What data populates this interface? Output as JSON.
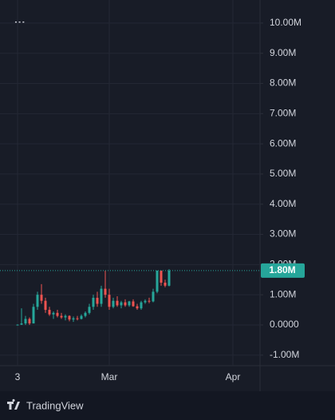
{
  "chart_data": {
    "type": "candlestick",
    "categories": [
      "3",
      null,
      null,
      null,
      null,
      null,
      null,
      null,
      null,
      null,
      null,
      null,
      null,
      null,
      null,
      null,
      null,
      null,
      null,
      null,
      null,
      null,
      null,
      "Mar",
      null,
      null,
      null,
      null,
      null,
      null,
      null,
      null,
      null,
      null,
      null,
      null,
      null,
      null,
      null,
      null,
      null,
      null,
      null,
      null,
      null,
      null,
      null,
      null,
      null,
      null,
      null,
      null,
      null,
      null,
      "Apr",
      null,
      null,
      null,
      null,
      null,
      null,
      null
    ],
    "open": [
      0,
      10000,
      50000,
      200000,
      50000,
      600000,
      1000000,
      800000,
      500000,
      350000,
      400000,
      300000,
      250000,
      300000,
      180000,
      220000,
      200000,
      300000,
      400000,
      600000,
      900000,
      700000,
      1200000,
      1000000,
      600000,
      800000,
      650000,
      750000,
      650000,
      780000,
      620000,
      550000,
      750000,
      800000,
      780000,
      1100000,
      1800000,
      1400000,
      1300000,
      null,
      null,
      null,
      null,
      null,
      null,
      null,
      null,
      null,
      null,
      null,
      null,
      null,
      null,
      null,
      null,
      null,
      null,
      null,
      null,
      null,
      null,
      null
    ],
    "high": [
      20000,
      550000,
      300000,
      250000,
      700000,
      1100000,
      1350000,
      900000,
      600000,
      450000,
      500000,
      400000,
      350000,
      320000,
      280000,
      300000,
      350000,
      450000,
      700000,
      1000000,
      1100000,
      1300000,
      1800000,
      1200000,
      900000,
      950000,
      800000,
      850000,
      800000,
      850000,
      700000,
      800000,
      850000,
      900000,
      1200000,
      1800000,
      1800000,
      1500000,
      1850000,
      null,
      null,
      null,
      null,
      null,
      null,
      null,
      null,
      null,
      null,
      null,
      null,
      null,
      null,
      null,
      null,
      null,
      null,
      null,
      null,
      null,
      null,
      null
    ],
    "low": [
      0,
      0,
      0,
      0,
      50000,
      500000,
      700000,
      400000,
      300000,
      200000,
      250000,
      200000,
      150000,
      120000,
      100000,
      150000,
      180000,
      250000,
      350000,
      500000,
      600000,
      600000,
      900000,
      500000,
      550000,
      600000,
      550000,
      600000,
      600000,
      600000,
      500000,
      500000,
      700000,
      720000,
      750000,
      1050000,
      1300000,
      1250000,
      1280000,
      null,
      null,
      null,
      null,
      null,
      null,
      null,
      null,
      null,
      null,
      null,
      null,
      null,
      null,
      null,
      null,
      null,
      null,
      null,
      null,
      null,
      null,
      null
    ],
    "close": [
      10000,
      50000,
      200000,
      50000,
      600000,
      1000000,
      800000,
      500000,
      350000,
      400000,
      300000,
      250000,
      300000,
      180000,
      220000,
      200000,
      300000,
      400000,
      600000,
      900000,
      700000,
      1200000,
      1000000,
      600000,
      800000,
      650000,
      750000,
      650000,
      780000,
      620000,
      550000,
      750000,
      800000,
      780000,
      1100000,
      1800000,
      1400000,
      1300000,
      1800000,
      null,
      null,
      null,
      null,
      null,
      null,
      null,
      null,
      null,
      null,
      null,
      null,
      null,
      null,
      null,
      null,
      null,
      null,
      null,
      null,
      null,
      null,
      null
    ],
    "up_color": "#26a69a",
    "down_color": "#ef5350",
    "ylim": [
      -1350000,
      10500000
    ],
    "yticks": [
      {
        "value": 10000000,
        "label": "10.00M"
      },
      {
        "value": 9000000,
        "label": "9.00M"
      },
      {
        "value": 8000000,
        "label": "8.00M"
      },
      {
        "value": 7000000,
        "label": "7.00M"
      },
      {
        "value": 6000000,
        "label": "6.00M"
      },
      {
        "value": 5000000,
        "label": "5.00M"
      },
      {
        "value": 4000000,
        "label": "4.00M"
      },
      {
        "value": 3000000,
        "label": "3.00M"
      },
      {
        "value": 2000000,
        "label": "2.00M"
      },
      {
        "value": 1000000,
        "label": "1.00M"
      },
      {
        "value": 0,
        "label": "0.0000"
      },
      {
        "value": -1000000,
        "label": "-1.00M"
      }
    ],
    "grid": true,
    "last_price": {
      "value": 1800000,
      "label": "1.80M"
    },
    "attribution": "TradingView"
  }
}
